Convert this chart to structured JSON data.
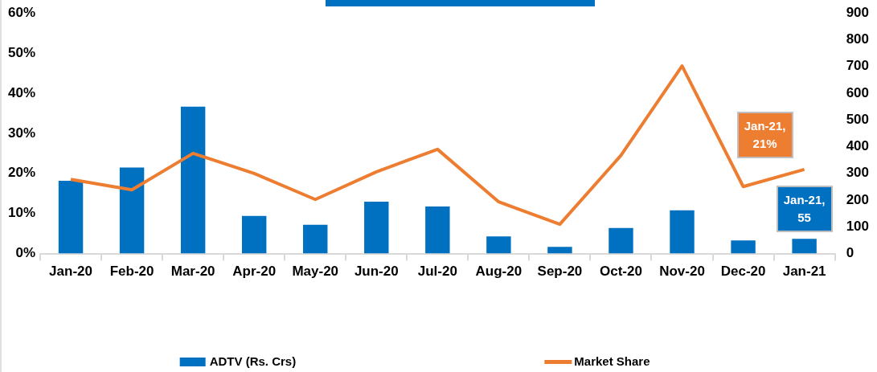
{
  "chart_data": {
    "type": "bar",
    "categories": [
      "Jan-20",
      "Feb-20",
      "Mar-20",
      "Apr-20",
      "May-20",
      "Jun-20",
      "Jul-20",
      "Aug-20",
      "Sep-20",
      "Oct-20",
      "Nov-20",
      "Dec-20",
      "Jan-21"
    ],
    "series": [
      {
        "name": "ADTV (Rs. Crs)",
        "axis": "y2",
        "color": "#0070c0",
        "values": [
          272,
          322,
          550,
          141,
          108,
          194,
          176,
          64,
          25,
          96,
          162,
          49,
          55
        ],
        "value_labels": [
          null,
          null,
          null,
          null,
          null,
          null,
          null,
          null,
          null,
          null,
          null,
          null,
          "Jan-21, 55"
        ]
      },
      {
        "name": "Market Share",
        "type": "line",
        "axis": "y",
        "color": "#ed7d31",
        "values": [
          18.5,
          15.9,
          25.0,
          20.0,
          13.5,
          20.4,
          26.0,
          12.9,
          7.3,
          24.5,
          46.8,
          16.7,
          21
        ],
        "value_labels": [
          null,
          null,
          null,
          null,
          null,
          null,
          null,
          null,
          null,
          null,
          null,
          null,
          "Jan-21, 21%"
        ]
      }
    ],
    "ylim": [
      0,
      60
    ],
    "yticks": [
      {
        "value": 0,
        "label": "0%"
      },
      {
        "value": 10,
        "label": "10%"
      },
      {
        "value": 20,
        "label": "20%"
      },
      {
        "value": 30,
        "label": "30%"
      },
      {
        "value": 40,
        "label": "40%"
      },
      {
        "value": 50,
        "label": "50%"
      },
      {
        "value": 60,
        "label": "60%"
      }
    ],
    "y2lim": [
      0,
      900
    ],
    "y2ticks": [
      0,
      100,
      200,
      300,
      400,
      500,
      600,
      700,
      800,
      900
    ],
    "grid": false,
    "legend": "bottom",
    "marker": "none",
    "line_style": "solid"
  }
}
